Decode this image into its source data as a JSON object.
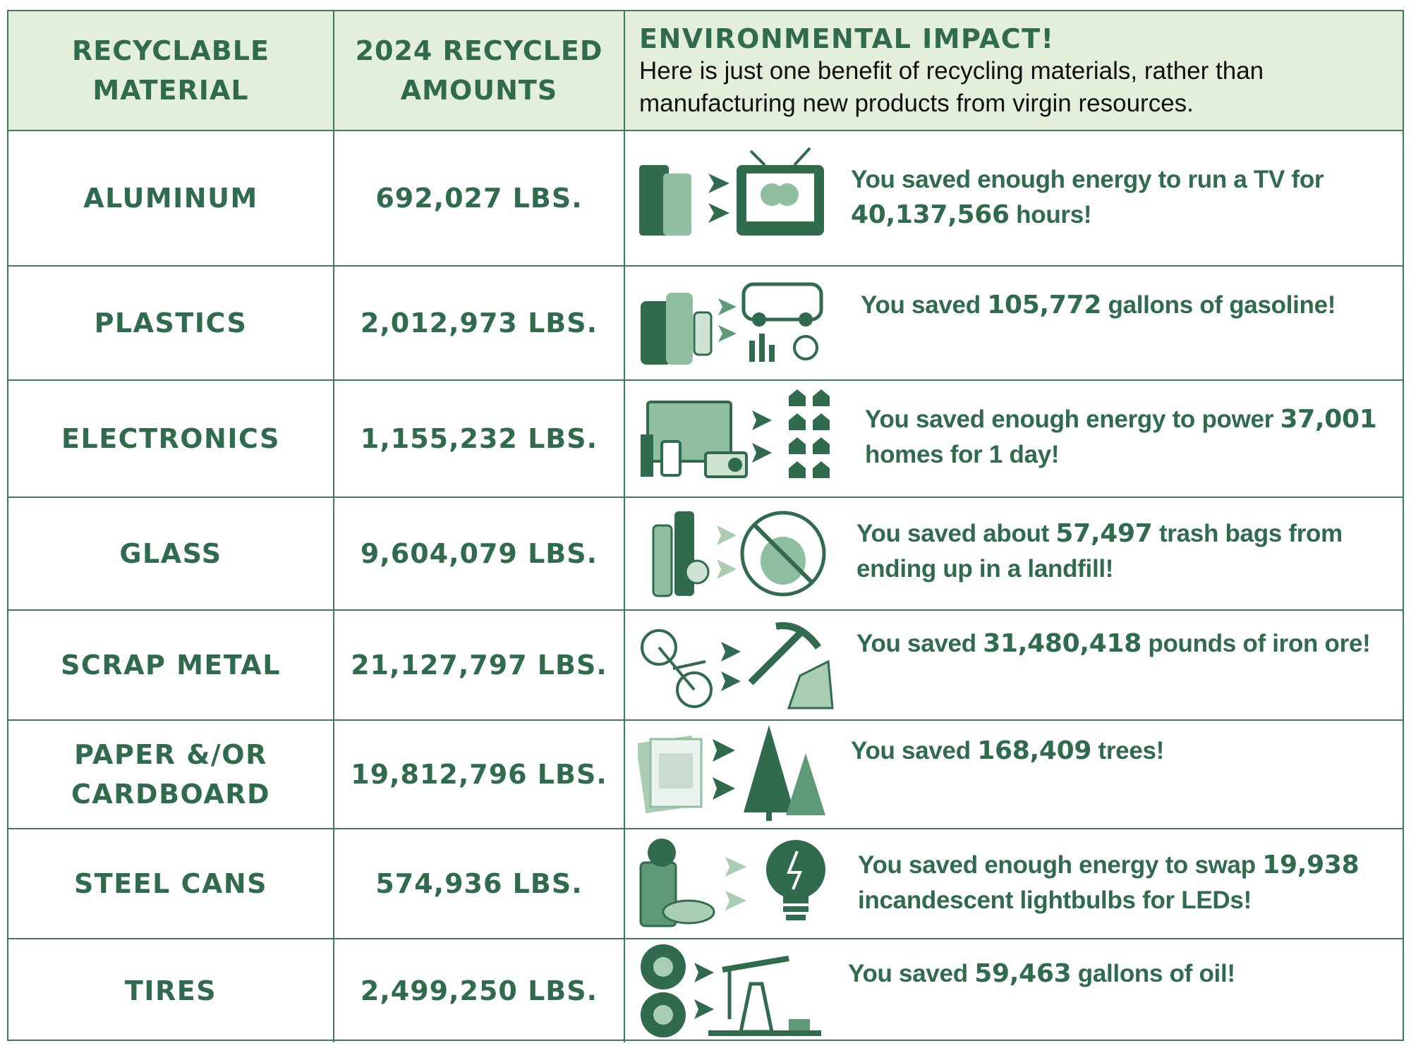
{
  "header": {
    "col1": "RECYCLABLE\nMATERIAL",
    "col2": "2024 RECYCLED\nAMOUNTS",
    "col3_title": "ENVIRONMENTAL IMPACT!",
    "col3_subtitle": "Here is just one benefit of recycling materials, rather than manufacturing new products from virgin resources."
  },
  "rows": [
    {
      "material": "ALUMINUM",
      "amount": "692,027 LBS.",
      "pre": "You saved enough energy to run a TV for ",
      "num": "40,137,566",
      "post": " hours!",
      "icon": "cans-to-tv-icon"
    },
    {
      "material": "PLASTICS",
      "amount": "2,012,973 LBS.",
      "pre": "You saved ",
      "num": "105,772",
      "post": " gallons of gasoline!",
      "icon": "bottles-to-car-icon"
    },
    {
      "material": "ELECTRONICS",
      "amount": "1,155,232 LBS.",
      "pre": "You saved enough energy to power ",
      "num": "37,001",
      "post": " homes for 1 day!",
      "icon": "electronics-to-homes-icon"
    },
    {
      "material": "GLASS",
      "amount": "9,604,079 LBS.",
      "pre": "You saved about ",
      "num": "57,497",
      "post": " trash bags from ending up in a landfill!",
      "icon": "glass-to-no-trash-icon"
    },
    {
      "material": "SCRAP METAL",
      "amount": "21,127,797 LBS.",
      "pre": "You saved ",
      "num": "31,480,418",
      "post": " pounds of iron ore!",
      "icon": "bike-to-pickaxe-icon"
    },
    {
      "material": "PAPER &/OR\nCARDBOARD",
      "amount": "19,812,796 LBS.",
      "pre": "You saved ",
      "num": "168,409",
      "post": " trees!",
      "icon": "paper-to-trees-icon"
    },
    {
      "material": "STEEL CANS",
      "amount": "574,936 LBS.",
      "pre": "You saved enough energy to swap ",
      "num": "19,938",
      "post": " incandescent lightbulbs for LEDs!",
      "icon": "cans-to-lightbulb-icon"
    },
    {
      "material": "TIRES",
      "amount": "2,499,250 LBS.",
      "pre": "You saved ",
      "num": "59,463",
      "post": " gallons of oil!",
      "icon": "tires-to-oil-pump-icon"
    }
  ],
  "colors": {
    "dark_green": "#2f6b4c",
    "mid_green": "#5f9a78",
    "light_green": "#a9cdb3",
    "header_bg": "#e3eedb"
  }
}
